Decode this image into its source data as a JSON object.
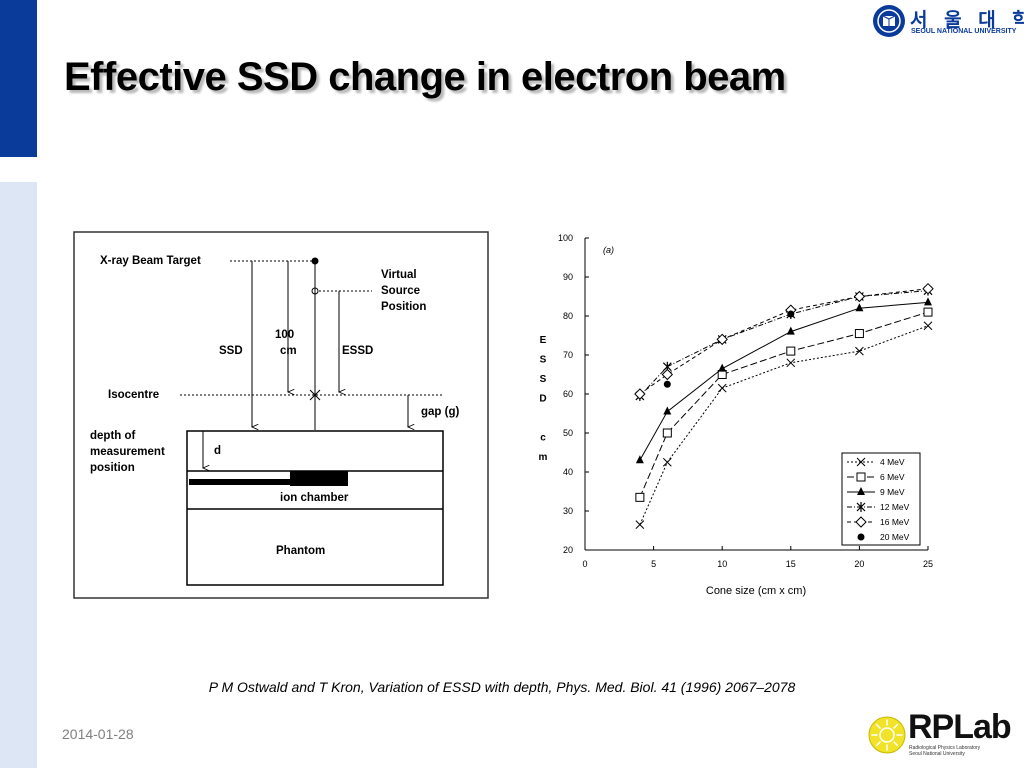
{
  "slide": {
    "title": "Effective SSD change in electron beam",
    "citation": "P M Ostwald and T Kron, Variation of ESSD with depth, Phys. Med. Biol. 41 (1996) 2067–2078",
    "date": "2014-01-28"
  },
  "logos": {
    "university_kr": "서 울 대 학 교",
    "university_en": "SEOUL NATIONAL UNIVERSITY",
    "lab_name": "RPLab",
    "lab_subtitle_1": "Radiological Physics Laboratory",
    "lab_subtitle_2": "Seoul National University"
  },
  "diagram": {
    "labels": {
      "target": "X-ray  Beam  Target",
      "virtual_1": "Virtual",
      "virtual_2": "Source",
      "virtual_3": "Position",
      "ssd": "SSD",
      "hundred": "100",
      "cm": "cm",
      "essd": "ESSD",
      "isocentre": "Isocentre",
      "gap": "gap  (g)",
      "depth_1": "depth  of",
      "depth_2": "measurement",
      "depth_3": "position",
      "d": "d",
      "ion_chamber": "ion  chamber",
      "phantom": "Phantom"
    }
  },
  "colors": {
    "sidebar_dark": "#0a3a9a",
    "sidebar_light": "#dce6f4",
    "brand_blue": "#0a3a9a",
    "date_gray": "#808080"
  },
  "chart_data": {
    "type": "line",
    "panel_label": "(a)",
    "xlabel": "Cone size (cm x cm)",
    "ylabel": "ESSD cm",
    "ylabel_chars": [
      "E",
      "S",
      "S",
      "D",
      "",
      "c",
      "m"
    ],
    "xlim": [
      0,
      25
    ],
    "ylim": [
      20,
      100
    ],
    "xticks": [
      0,
      5,
      10,
      15,
      20,
      25
    ],
    "yticks": [
      20,
      30,
      40,
      50,
      60,
      70,
      80,
      90,
      100
    ],
    "grid": false,
    "legend_position": "bottom-right",
    "series": [
      {
        "name": "4 MeV",
        "marker": "x",
        "dash": "dotted",
        "x": [
          4,
          6,
          10,
          15,
          20,
          25
        ],
        "y": [
          26.5,
          42.5,
          61.5,
          68,
          71,
          77.5
        ]
      },
      {
        "name": "6 MeV",
        "marker": "square",
        "dash": "longdash",
        "x": [
          4,
          6,
          10,
          15,
          20,
          25
        ],
        "y": [
          33.5,
          50,
          65,
          71,
          75.5,
          81
        ]
      },
      {
        "name": "9 MeV",
        "marker": "triangle",
        "dash": "solid",
        "x": [
          4,
          6,
          10,
          15,
          20,
          25
        ],
        "y": [
          43,
          55.5,
          66.5,
          76,
          82,
          83.5
        ]
      },
      {
        "name": "12 MeV",
        "marker": "star",
        "dash": "dashdot",
        "x": [
          4,
          6,
          10,
          15,
          20,
          25
        ],
        "y": [
          59.5,
          67,
          74,
          80.5,
          85,
          86.5
        ]
      },
      {
        "name": "16 MeV",
        "marker": "diamond",
        "dash": "dashed",
        "x": [
          4,
          6,
          10,
          15,
          20,
          25
        ],
        "y": [
          60,
          65,
          74,
          81.5,
          85,
          87
        ]
      },
      {
        "name": "20 MeV",
        "marker": "dot",
        "dash": "none",
        "x": [
          6,
          15
        ],
        "y": [
          62.5,
          80.5
        ]
      }
    ]
  }
}
